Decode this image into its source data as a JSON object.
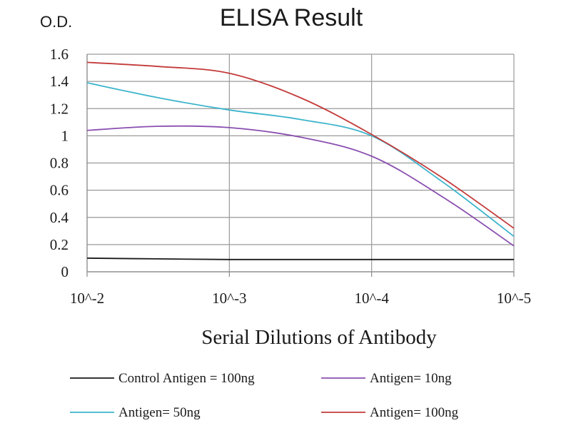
{
  "chart_data": {
    "type": "line",
    "title": "ELISA Result",
    "ylabel": "O.D.",
    "xlabel": "Serial Dilutions  of Antibody",
    "categories": [
      "10^-2",
      "10^-3",
      "10^-4",
      "10^-5"
    ],
    "x": [
      0,
      0.5,
      1,
      1.5,
      2,
      2.5,
      3
    ],
    "ylim": [
      0,
      1.6
    ],
    "yticks": [
      "0",
      "0.2",
      "0.4",
      "0.6",
      "0.8",
      "1",
      "1.2",
      "1.4",
      "1.6"
    ],
    "grid": true,
    "legend_position": "bottom",
    "series": [
      {
        "name": "Control Antigen = 100ng",
        "color": "#1a1a1a",
        "values": [
          0.1,
          0.095,
          0.09,
          0.09,
          0.09,
          0.09,
          0.09
        ]
      },
      {
        "name": "Antigen= 10ng",
        "color": "#8a4fb0",
        "values": [
          1.04,
          1.07,
          1.06,
          0.99,
          0.85,
          0.55,
          0.19
        ]
      },
      {
        "name": "Antigen= 50ng",
        "color": "#3cb4cc",
        "values": [
          1.39,
          1.28,
          1.19,
          1.12,
          1.0,
          0.66,
          0.26
        ]
      },
      {
        "name": "Antigen= 100ng",
        "color": "#c43a3a",
        "values": [
          1.54,
          1.51,
          1.46,
          1.28,
          1.01,
          0.69,
          0.32
        ]
      }
    ]
  }
}
